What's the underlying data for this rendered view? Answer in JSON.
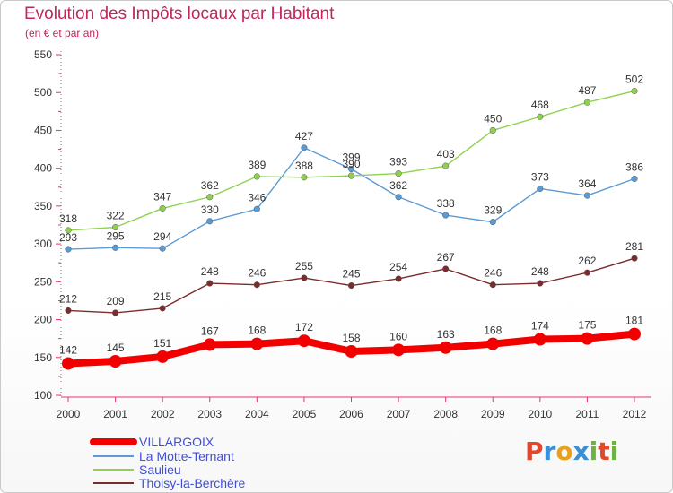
{
  "title": "Evolution des Impôts locaux par Habitant",
  "subtitle": "(en € et par an)",
  "logo": {
    "letters": [
      "P",
      "r",
      "o",
      "x",
      "i",
      "t",
      "i"
    ],
    "colors": [
      "#e0472b",
      "#3a8fd6",
      "#e8a020",
      "#3a8fd6",
      "#6cb33f",
      "#e0472b",
      "#6cb33f"
    ]
  },
  "colors": {
    "axis": "#e8336d",
    "text": "#333333",
    "legend": "#3f4fd6"
  },
  "chart_data": {
    "type": "line",
    "title": "Evolution des Impôts locaux par Habitant",
    "ylabel": "(en € et par an)",
    "categories": [
      "2000",
      "2001",
      "2002",
      "2003",
      "2004",
      "2005",
      "2006",
      "2007",
      "2008",
      "2009",
      "2010",
      "2011",
      "2012"
    ],
    "y_ticks": [
      100,
      150,
      200,
      250,
      300,
      350,
      400,
      450,
      500,
      550
    ],
    "ylim": [
      100,
      550
    ],
    "legend_position": "bottom-left",
    "series": [
      {
        "name": "VILLARGOIX",
        "color": "#f20000",
        "values": [
          142,
          145,
          151,
          167,
          168,
          172,
          158,
          160,
          163,
          168,
          174,
          175,
          181
        ]
      },
      {
        "name": "La Motte-Ternant",
        "color": "#5b9bd5",
        "values": [
          293,
          295,
          294,
          330,
          346,
          427,
          399,
          362,
          338,
          329,
          373,
          364,
          386
        ]
      },
      {
        "name": "Saulieu",
        "color": "#8fd14f",
        "values": [
          318,
          322,
          347,
          362,
          389,
          388,
          390,
          393,
          403,
          450,
          468,
          487,
          502
        ]
      },
      {
        "name": "Thoisy-la-Berchère",
        "color": "#7b2c2c",
        "values": [
          212,
          209,
          215,
          248,
          246,
          255,
          245,
          254,
          267,
          246,
          248,
          262,
          281
        ]
      }
    ]
  }
}
